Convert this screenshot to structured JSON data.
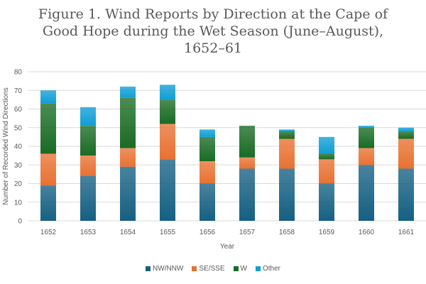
{
  "chart_data": {
    "type": "bar",
    "stacked": true,
    "title": "Figure 1. Wind Reports by Direction at the Cape of Good Hope during the Wet Season (June–August), 1652–61",
    "title_lines": [
      "Figure 1. Wind Reports by Direction at the Cape of",
      "Good Hope during the Wet Season (June–August),",
      "1652–61"
    ],
    "xlabel": "Year",
    "ylabel": "Number of Recorded Wind Directions",
    "ylim": [
      0,
      80
    ],
    "yticks": [
      0,
      10,
      20,
      30,
      40,
      50,
      60,
      70,
      80
    ],
    "grid": true,
    "legend_position": "bottom",
    "categories": [
      "1652",
      "1653",
      "1654",
      "1655",
      "1656",
      "1657",
      "1658",
      "1659",
      "1660",
      "1661"
    ],
    "series": [
      {
        "name": "NW/NNW",
        "color": "#156082",
        "values": [
          19,
          24,
          29,
          33,
          20,
          28,
          28,
          20,
          30,
          28
        ]
      },
      {
        "name": "SE/SSE",
        "color": "#E97132",
        "values": [
          17,
          11,
          10,
          19,
          12,
          6,
          16,
          13,
          9,
          16
        ]
      },
      {
        "name": "W",
        "color": "#196B24",
        "values": [
          27,
          16,
          27,
          13,
          13,
          17,
          4,
          3,
          11,
          4
        ]
      },
      {
        "name": "Other",
        "color": "#0F9ED5",
        "values": [
          7,
          10,
          6,
          8,
          4,
          0,
          1,
          9,
          1,
          2
        ]
      }
    ]
  }
}
